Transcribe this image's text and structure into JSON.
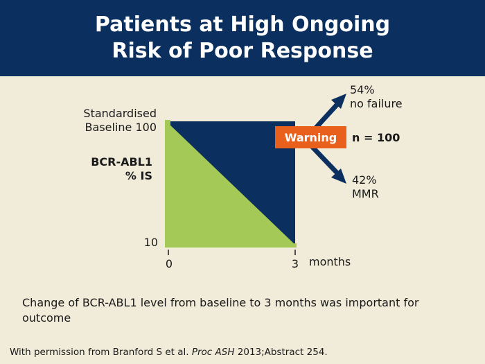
{
  "slide": {
    "title_line1": "Patients at High Ongoing",
    "title_line2": "Risk of Poor Response"
  },
  "diagram": {
    "y_top_label_line1": "Standardised",
    "y_top_label_line2": "Baseline 100",
    "y_bottom_label": "10",
    "y_axis_title_line1": "BCR-ABL1",
    "y_axis_title_line2": "% IS",
    "x_tick_start": "0",
    "x_tick_end": "3",
    "x_unit": "months",
    "warning_label": "Warning",
    "n_label": "n = 100",
    "outcome_up_line1": "54%",
    "outcome_up_line2": "no failure",
    "outcome_down_line1": "42%",
    "outcome_down_line2": "MMR",
    "colors": {
      "green": "#a4c956",
      "navy": "#0b2f5e",
      "warning": "#e8601c"
    }
  },
  "caption": "Change of BCR-ABL1 level from baseline to 3 months was important for outcome",
  "footer": {
    "prefix": "With permission from Branford S et al. ",
    "journal": "Proc ASH",
    "suffix": " 2013;Abstract 254."
  }
}
